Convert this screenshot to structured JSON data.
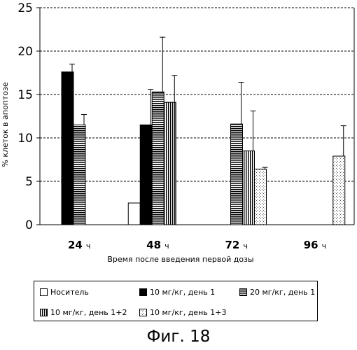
{
  "chart_data": {
    "type": "bar",
    "title": "",
    "ylabel": "% клеток в апоптозе",
    "xlabel": "Время после введения первой дозы",
    "ylim": [
      0,
      25
    ],
    "yticks": [
      0,
      5,
      10,
      15,
      20,
      25
    ],
    "grid": "dashed horizontal",
    "categories": [
      {
        "num": "24",
        "unit": "ч"
      },
      {
        "num": "48",
        "unit": "ч"
      },
      {
        "num": "72",
        "unit": "ч"
      },
      {
        "num": "96",
        "unit": "ч"
      }
    ],
    "series": [
      {
        "name": "Носитель",
        "pattern": "white",
        "values": [
          null,
          2.5,
          null,
          null
        ],
        "errors": [
          null,
          null,
          null,
          null
        ]
      },
      {
        "name": "10 мг/кг, день 1",
        "pattern": "black",
        "values": [
          17.6,
          11.5,
          null,
          null
        ],
        "errors": [
          0.9,
          4.1,
          null,
          null
        ]
      },
      {
        "name": "20 мг/кг, день 1",
        "pattern": "hlines",
        "values": [
          11.5,
          15.3,
          11.6,
          null
        ],
        "errors": [
          1.2,
          6.3,
          4.8,
          null
        ]
      },
      {
        "name": "10 мг/кг, день 1+2",
        "pattern": "vlines",
        "values": [
          null,
          14.1,
          8.5,
          null
        ],
        "errors": [
          null,
          3.1,
          4.6,
          null
        ]
      },
      {
        "name": "10 мг/кг, день 1+3",
        "pattern": "dots",
        "values": [
          null,
          null,
          6.4,
          7.9
        ],
        "errors": [
          null,
          null,
          0.2,
          3.5
        ]
      }
    ],
    "legend_position": "bottom"
  },
  "figure": {
    "caption": "Фиг. 18"
  }
}
